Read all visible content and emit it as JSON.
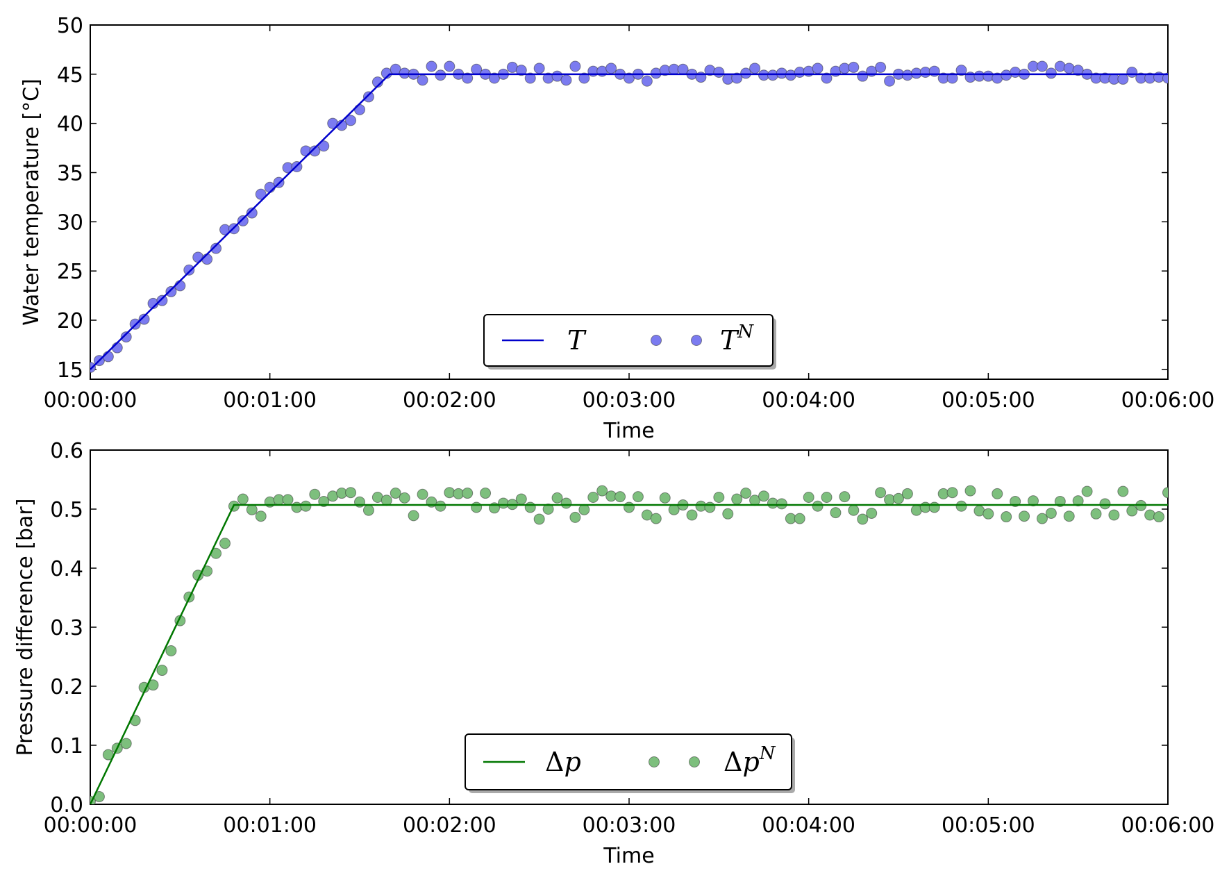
{
  "chart_data": [
    {
      "type": "line",
      "xlabel": "Time",
      "ylabel": "Water temperature [°C]",
      "xlim": [
        0,
        360
      ],
      "ylim": [
        14,
        50
      ],
      "xticks": [
        0,
        60,
        120,
        180,
        240,
        300,
        360
      ],
      "xtick_labels": [
        "00:00:00",
        "00:01:00",
        "00:02:00",
        "00:03:00",
        "00:04:00",
        "00:05:00",
        "00:06:00"
      ],
      "yticks": [
        15,
        20,
        25,
        30,
        35,
        40,
        45,
        50
      ],
      "ytick_labels": [
        "15",
        "20",
        "25",
        "30",
        "35",
        "40",
        "45",
        "50"
      ],
      "legend": {
        "position": "lower center",
        "entries": [
          "T",
          "T^N"
        ]
      },
      "series": [
        {
          "name": "T",
          "kind": "line",
          "color": "#0000cc",
          "x": [
            0,
            100,
            360
          ],
          "y": [
            15,
            45,
            45
          ]
        },
        {
          "name": "T^N",
          "kind": "scatter",
          "color": "#7b7bf0",
          "x": [
            0,
            3,
            6,
            9,
            12,
            15,
            18,
            21,
            24,
            27,
            30,
            33,
            36,
            39,
            42,
            45,
            48,
            51,
            54,
            57,
            60,
            63,
            66,
            69,
            72,
            75,
            78,
            81,
            84,
            87,
            90,
            93,
            96,
            99,
            102,
            105,
            108,
            111,
            114,
            117,
            120,
            123,
            126,
            129,
            132,
            135,
            138,
            141,
            144,
            147,
            150,
            153,
            156,
            159,
            162,
            165,
            168,
            171,
            174,
            177,
            180,
            183,
            186,
            189,
            192,
            195,
            198,
            201,
            204,
            207,
            210,
            213,
            216,
            219,
            222,
            225,
            228,
            231,
            234,
            237,
            240,
            243,
            246,
            249,
            252,
            255,
            258,
            261,
            264,
            267,
            270,
            273,
            276,
            279,
            282,
            285,
            288,
            291,
            294,
            297,
            300,
            303,
            306,
            309,
            312,
            315,
            318,
            321,
            324,
            327,
            330,
            333,
            336,
            339,
            342,
            345,
            348,
            351,
            354,
            357,
            360
          ],
          "y": [
            15.2,
            15.9,
            16.3,
            17.2,
            18.3,
            19.6,
            20.1,
            21.7,
            22,
            22.9,
            23.5,
            25.1,
            26.4,
            26.2,
            27.3,
            29.2,
            29.3,
            30.1,
            30.9,
            32.8,
            33.5,
            34,
            35.5,
            35.6,
            37.2,
            37.2,
            37.7,
            40,
            39.8,
            40.3,
            41.4,
            42.7,
            44.2,
            45.1,
            45.5,
            45.1,
            45,
            44.4,
            45.8,
            44.9,
            45.8,
            45,
            44.6,
            45.5,
            45,
            44.6,
            45,
            45.7,
            45.4,
            44.6,
            45.6,
            44.6,
            44.8,
            44.4,
            45.8,
            44.6,
            45.3,
            45.3,
            45.6,
            45,
            44.6,
            45,
            44.3,
            45.1,
            45.4,
            45.5,
            45.5,
            45,
            44.7,
            45.4,
            45.2,
            44.5,
            44.6,
            45.1,
            45.6,
            44.9,
            44.9,
            45.1,
            44.9,
            45.2,
            45.3,
            45.6,
            44.6,
            45.3,
            45.6,
            45.7,
            44.8,
            45.3,
            45.7,
            44.3,
            45,
            44.9,
            45.1,
            45.2,
            45.3,
            44.6,
            44.6,
            45.4,
            44.7,
            44.8,
            44.8,
            44.6,
            44.9,
            45.2,
            45,
            45.8,
            45.8,
            45.1,
            45.8,
            45.6,
            45.4,
            45,
            44.6,
            44.6,
            44.5,
            44.5,
            45.2,
            44.6,
            44.6,
            44.7,
            44.6
          ]
        }
      ]
    },
    {
      "type": "line",
      "xlabel": "Time",
      "ylabel": "Pressure difference [bar]",
      "xlim": [
        0,
        360
      ],
      "ylim": [
        0,
        0.6
      ],
      "xticks": [
        0,
        60,
        120,
        180,
        240,
        300,
        360
      ],
      "xtick_labels": [
        "00:00:00",
        "00:01:00",
        "00:02:00",
        "00:03:00",
        "00:04:00",
        "00:05:00",
        "00:06:00"
      ],
      "yticks": [
        0,
        0.1,
        0.2,
        0.3,
        0.4,
        0.5,
        0.6
      ],
      "ytick_labels": [
        "0.0",
        "0.1",
        "0.2",
        "0.3",
        "0.4",
        "0.5",
        "0.6"
      ],
      "legend": {
        "position": "lower center",
        "entries": [
          "Δp",
          "Δp^N"
        ]
      },
      "series": [
        {
          "name": "Δp",
          "kind": "line",
          "color": "#007700",
          "x": [
            0,
            48,
            360
          ],
          "y": [
            0,
            0.507,
            0.507
          ]
        },
        {
          "name": "Δp^N",
          "kind": "scatter",
          "color": "#7dbf7d",
          "x": [
            0,
            3,
            6,
            9,
            12,
            15,
            18,
            21,
            24,
            27,
            30,
            33,
            36,
            39,
            42,
            45,
            48,
            51,
            54,
            57,
            60,
            63,
            66,
            69,
            72,
            75,
            78,
            81,
            84,
            87,
            90,
            93,
            96,
            99,
            102,
            105,
            108,
            111,
            114,
            117,
            120,
            123,
            126,
            129,
            132,
            135,
            138,
            141,
            144,
            147,
            150,
            153,
            156,
            159,
            162,
            165,
            168,
            171,
            174,
            177,
            180,
            183,
            186,
            189,
            192,
            195,
            198,
            201,
            204,
            207,
            210,
            213,
            216,
            219,
            222,
            225,
            228,
            231,
            234,
            237,
            240,
            243,
            246,
            249,
            252,
            255,
            258,
            261,
            264,
            267,
            270,
            273,
            276,
            279,
            282,
            285,
            288,
            291,
            294,
            297,
            300,
            303,
            306,
            309,
            312,
            315,
            318,
            321,
            324,
            327,
            330,
            333,
            336,
            339,
            342,
            345,
            348,
            351,
            354,
            357,
            360
          ],
          "y": [
            0.005,
            0.013,
            0.084,
            0.095,
            0.103,
            0.142,
            0.198,
            0.202,
            0.227,
            0.26,
            0.311,
            0.351,
            0.388,
            0.395,
            0.425,
            0.442,
            0.505,
            0.517,
            0.499,
            0.488,
            0.512,
            0.516,
            0.516,
            0.503,
            0.505,
            0.525,
            0.513,
            0.522,
            0.527,
            0.528,
            0.512,
            0.498,
            0.52,
            0.515,
            0.527,
            0.519,
            0.489,
            0.525,
            0.512,
            0.505,
            0.528,
            0.526,
            0.527,
            0.503,
            0.527,
            0.502,
            0.51,
            0.508,
            0.517,
            0.503,
            0.483,
            0.5,
            0.519,
            0.51,
            0.486,
            0.499,
            0.52,
            0.531,
            0.522,
            0.521,
            0.503,
            0.521,
            0.49,
            0.484,
            0.519,
            0.499,
            0.507,
            0.49,
            0.505,
            0.503,
            0.52,
            0.492,
            0.517,
            0.527,
            0.515,
            0.522,
            0.51,
            0.509,
            0.484,
            0.484,
            0.52,
            0.505,
            0.52,
            0.494,
            0.521,
            0.498,
            0.483,
            0.493,
            0.528,
            0.516,
            0.518,
            0.526,
            0.498,
            0.503,
            0.503,
            0.526,
            0.528,
            0.505,
            0.531,
            0.497,
            0.492,
            0.526,
            0.487,
            0.513,
            0.488,
            0.514,
            0.484,
            0.493,
            0.513,
            0.488,
            0.514,
            0.53,
            0.492,
            0.509,
            0.49,
            0.53,
            0.497,
            0.506,
            0.49,
            0.487,
            0.528
          ]
        }
      ]
    }
  ]
}
